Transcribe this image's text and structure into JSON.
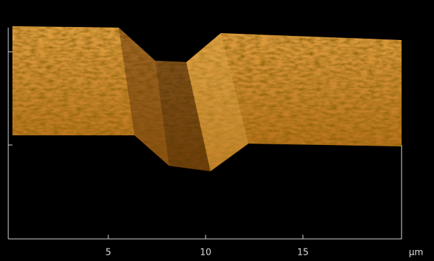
{
  "chart_data": {
    "type": "surface",
    "x_unit": "μm",
    "xlim": [
      0,
      20
    ],
    "xticks": [
      5,
      10,
      15
    ]
  }
}
